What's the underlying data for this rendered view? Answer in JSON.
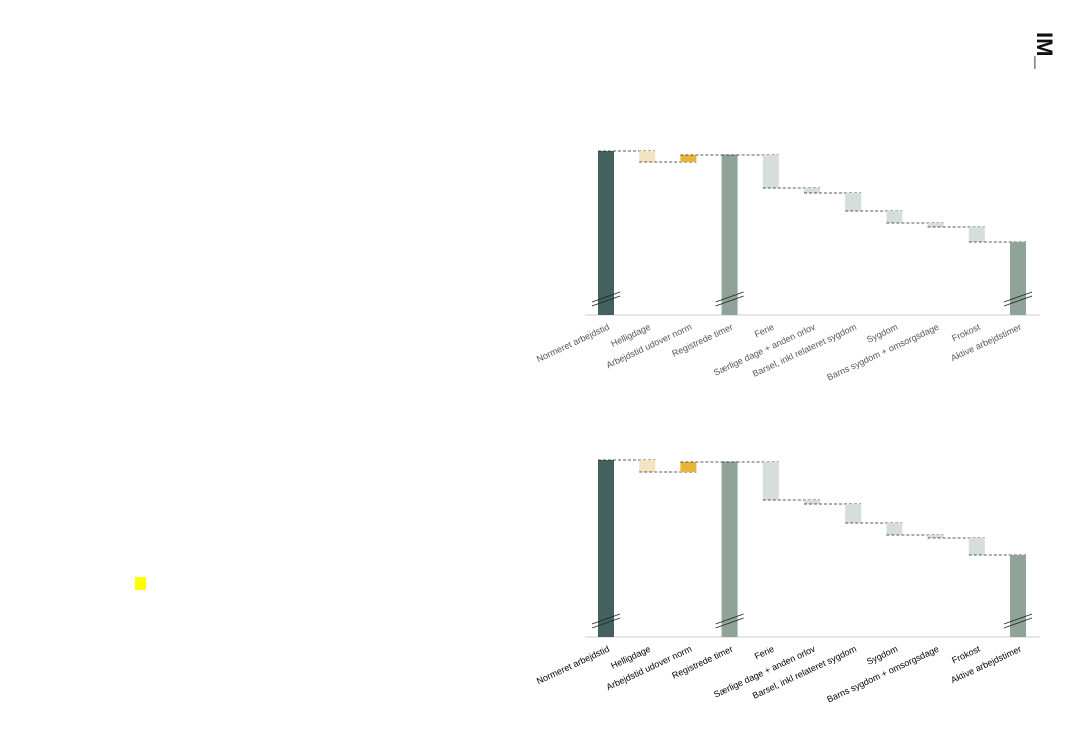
{
  "logo": "IM_",
  "chart_data": [
    {
      "type": "waterfall",
      "categories": [
        "Normeret arbejdstid",
        "Helligdage",
        "Arbejdstid udover norm",
        "Registrede timer",
        "Ferie",
        "Særlige dage + anden orlov",
        "Barsel, inkl relateret sygdom",
        "Sygdom",
        "Barns sygdom + omsorgsdage",
        "Frokost",
        "Aktive arbejdstimer"
      ],
      "measure": [
        "absolute",
        "relative",
        "relative",
        "absolute",
        "relative",
        "relative",
        "relative",
        "relative",
        "relative",
        "relative",
        "absolute"
      ],
      "values": [
        164,
        -11,
        7,
        160,
        -33,
        -5,
        -18,
        -12,
        -4,
        -15,
        73
      ],
      "colors": [
        "#44615f",
        "#f3e3bf",
        "#e8b43a",
        "#8fa39a",
        "#d5dedb",
        "#d5dedb",
        "#d5dedb",
        "#d5dedb",
        "#d5dedb",
        "#d5dedb",
        "#8fa39a"
      ],
      "ylim": [
        0,
        180
      ],
      "label_color": "#555555"
    },
    {
      "type": "waterfall",
      "categories": [
        "Normeret arbejdstid",
        "Helligdage",
        "Arbejdstid udover norm",
        "Registrede timer",
        "Ferie",
        "Særlige dage + anden orlov",
        "Barsel, inkl relateret sygdom",
        "Sygdom",
        "Barns sygdom + omsorgsdage",
        "Frokost",
        "Aktive arbejdstimer"
      ],
      "measure": [
        "absolute",
        "relative",
        "relative",
        "absolute",
        "relative",
        "relative",
        "relative",
        "relative",
        "relative",
        "relative",
        "absolute"
      ],
      "values": [
        177,
        -12,
        10,
        175,
        -38,
        -4,
        -19,
        -12,
        -3,
        -17,
        82
      ],
      "colors": [
        "#44615f",
        "#f3e3bf",
        "#e8b43a",
        "#8fa39a",
        "#d5dedb",
        "#d5dedb",
        "#d5dedb",
        "#d5dedb",
        "#d5dedb",
        "#d5dedb",
        "#8fa39a"
      ],
      "ylim": [
        0,
        190
      ],
      "label_color": "#000000"
    }
  ]
}
